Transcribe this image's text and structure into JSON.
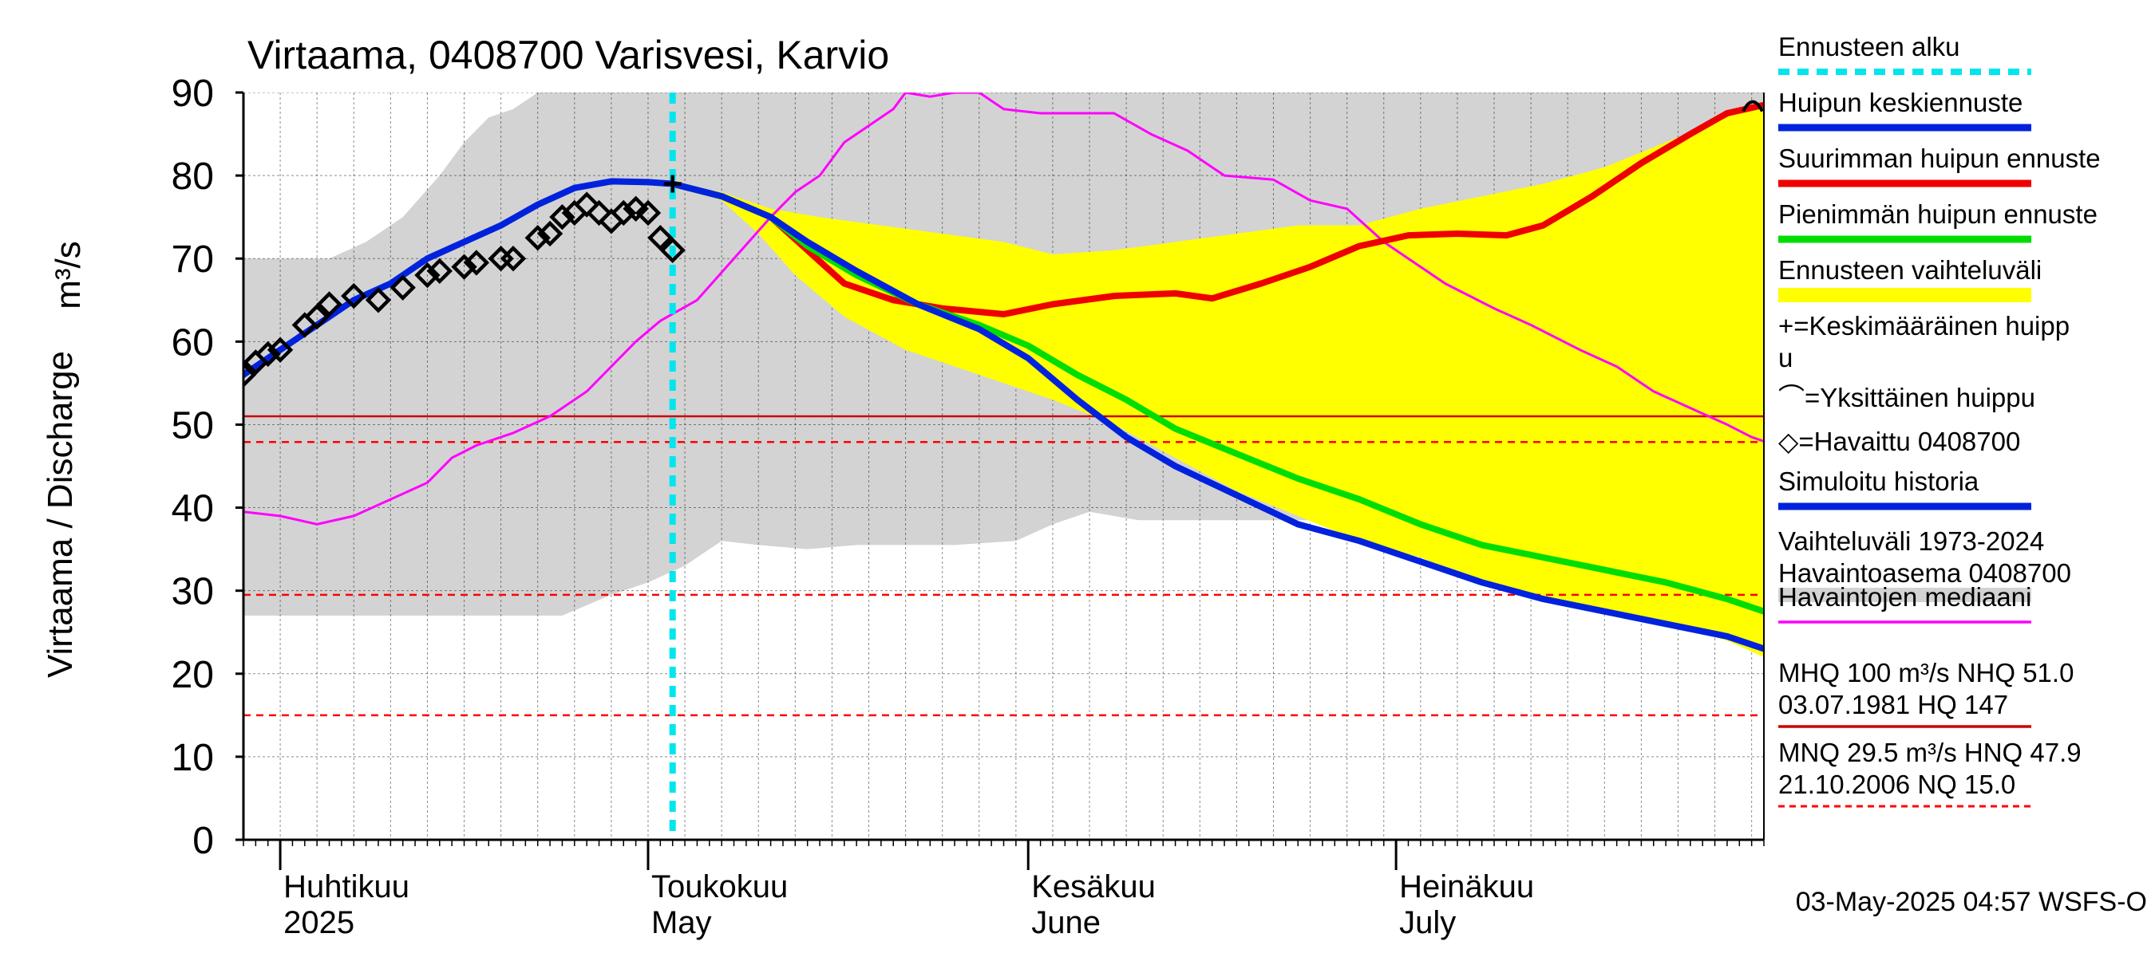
{
  "chart_data": {
    "type": "line",
    "title": "Virtaama, 0408700 Varisvesi, Karvio",
    "ylabel": "Virtaama / Discharge",
    "yunit": "m³/s",
    "ylim": [
      0,
      90
    ],
    "yticks": [
      0,
      10,
      20,
      30,
      40,
      50,
      60,
      70,
      80,
      90
    ],
    "xlim": [
      "2025-03-29",
      "2025-07-31"
    ],
    "x_is_date": true,
    "month_labels": [
      {
        "date": "2025-04-01",
        "line1": "Huhtikuu",
        "line2": "2025"
      },
      {
        "date": "2025-05-01",
        "line1": "Toukokuu",
        "line2": "May"
      },
      {
        "date": "2025-06-01",
        "line1": "Kesäkuu",
        "line2": "June"
      },
      {
        "date": "2025-07-01",
        "line1": "Heinäkuu",
        "line2": "July"
      }
    ],
    "forecast_start": "2025-05-03",
    "timestamp": "03-May-2025 04:57 WSFS-O",
    "grid": true,
    "legend_position": "right",
    "history_band": {
      "name": "Vaihteluväli 1973-2024 Havaintoasema 0408700",
      "color": "#d3d3d3",
      "upper": [
        [
          "2025-03-29",
          70
        ],
        [
          "2025-04-05",
          70
        ],
        [
          "2025-04-08",
          72
        ],
        [
          "2025-04-11",
          75
        ],
        [
          "2025-04-14",
          80
        ],
        [
          "2025-04-16",
          84
        ],
        [
          "2025-04-18",
          87
        ],
        [
          "2025-04-20",
          88
        ],
        [
          "2025-04-22",
          90
        ],
        [
          "2025-05-03",
          90
        ],
        [
          "2025-06-01",
          90
        ],
        [
          "2025-07-31",
          90
        ]
      ],
      "lower": [
        [
          "2025-03-29",
          27
        ],
        [
          "2025-04-20",
          27
        ],
        [
          "2025-04-24",
          27
        ],
        [
          "2025-04-28",
          29.5
        ],
        [
          "2025-05-01",
          31
        ],
        [
          "2025-05-04",
          33
        ],
        [
          "2025-05-07",
          36
        ],
        [
          "2025-05-10",
          35.5
        ],
        [
          "2025-05-14",
          35
        ],
        [
          "2025-05-18",
          35.5
        ],
        [
          "2025-05-22",
          35.5
        ],
        [
          "2025-05-26",
          35.5
        ],
        [
          "2025-05-31",
          36
        ],
        [
          "2025-06-03",
          38
        ],
        [
          "2025-06-06",
          39.5
        ],
        [
          "2025-06-10",
          38.5
        ],
        [
          "2025-06-18",
          38.5
        ],
        [
          "2025-06-25",
          38.5
        ],
        [
          "2025-07-02",
          38.5
        ],
        [
          "2025-07-08",
          36
        ],
        [
          "2025-07-12",
          38.5
        ],
        [
          "2025-07-16",
          38
        ],
        [
          "2025-07-20",
          38.5
        ],
        [
          "2025-07-24",
          37
        ],
        [
          "2025-07-28",
          35
        ],
        [
          "2025-07-31",
          30
        ]
      ]
    },
    "forecast_band": {
      "name": "Ennusteen vaihteluväli",
      "color": "#ffff00",
      "upper": [
        [
          "2025-05-03",
          79
        ],
        [
          "2025-05-07",
          78
        ],
        [
          "2025-05-11",
          76
        ],
        [
          "2025-05-15",
          75
        ],
        [
          "2025-05-20",
          74
        ],
        [
          "2025-05-25",
          73
        ],
        [
          "2025-05-30",
          72
        ],
        [
          "2025-06-03",
          70.5
        ],
        [
          "2025-06-08",
          71
        ],
        [
          "2025-06-13",
          72
        ],
        [
          "2025-06-18",
          73
        ],
        [
          "2025-06-23",
          74
        ],
        [
          "2025-06-28",
          74
        ],
        [
          "2025-07-03",
          76
        ],
        [
          "2025-07-08",
          77.5
        ],
        [
          "2025-07-13",
          79
        ],
        [
          "2025-07-18",
          81
        ],
        [
          "2025-07-23",
          84
        ],
        [
          "2025-07-28",
          87
        ],
        [
          "2025-07-31",
          89
        ]
      ],
      "lower": [
        [
          "2025-05-03",
          79
        ],
        [
          "2025-05-07",
          77
        ],
        [
          "2025-05-10",
          73
        ],
        [
          "2025-05-13",
          68
        ],
        [
          "2025-05-17",
          63
        ],
        [
          "2025-05-22",
          59
        ],
        [
          "2025-05-28",
          56
        ],
        [
          "2025-06-03",
          53
        ],
        [
          "2025-06-08",
          50
        ],
        [
          "2025-06-13",
          46
        ],
        [
          "2025-06-18",
          42
        ],
        [
          "2025-06-23",
          39
        ],
        [
          "2025-06-28",
          36
        ],
        [
          "2025-07-03",
          34
        ],
        [
          "2025-07-08",
          31
        ],
        [
          "2025-07-13",
          29
        ],
        [
          "2025-07-18",
          27.5
        ],
        [
          "2025-07-23",
          26
        ],
        [
          "2025-07-28",
          24
        ],
        [
          "2025-07-31",
          22
        ]
      ]
    },
    "series": [
      {
        "name": "Havaintojen mediaani",
        "color": "#ff00ff",
        "width": 3,
        "points": [
          [
            "2025-03-29",
            39.5
          ],
          [
            "2025-04-01",
            39
          ],
          [
            "2025-04-04",
            38
          ],
          [
            "2025-04-07",
            39
          ],
          [
            "2025-04-10",
            41
          ],
          [
            "2025-04-13",
            43
          ],
          [
            "2025-04-15",
            46
          ],
          [
            "2025-04-17",
            47.5
          ],
          [
            "2025-04-20",
            49
          ],
          [
            "2025-04-23",
            51
          ],
          [
            "2025-04-26",
            54
          ],
          [
            "2025-04-28",
            57
          ],
          [
            "2025-04-30",
            60
          ],
          [
            "2025-05-02",
            62.5
          ],
          [
            "2025-05-05",
            65
          ],
          [
            "2025-05-08",
            70
          ],
          [
            "2025-05-11",
            75
          ],
          [
            "2025-05-13",
            78
          ],
          [
            "2025-05-15",
            80
          ],
          [
            "2025-05-17",
            84
          ],
          [
            "2025-05-19",
            86
          ],
          [
            "2025-05-21",
            88
          ],
          [
            "2025-05-22",
            90
          ],
          [
            "2025-05-24",
            89.5
          ],
          [
            "2025-05-26",
            90
          ],
          [
            "2025-05-28",
            90
          ],
          [
            "2025-05-30",
            88
          ],
          [
            "2025-06-02",
            87.5
          ],
          [
            "2025-06-05",
            87.5
          ],
          [
            "2025-06-08",
            87.5
          ],
          [
            "2025-06-11",
            85
          ],
          [
            "2025-06-14",
            83
          ],
          [
            "2025-06-17",
            80
          ],
          [
            "2025-06-21",
            79.5
          ],
          [
            "2025-06-24",
            77
          ],
          [
            "2025-06-27",
            76
          ],
          [
            "2025-06-30",
            72
          ],
          [
            "2025-07-02",
            70
          ],
          [
            "2025-07-05",
            67
          ],
          [
            "2025-07-09",
            64
          ],
          [
            "2025-07-12",
            62
          ],
          [
            "2025-07-16",
            59
          ],
          [
            "2025-07-19",
            57
          ],
          [
            "2025-07-22",
            54
          ],
          [
            "2025-07-25",
            52
          ],
          [
            "2025-07-28",
            50
          ],
          [
            "2025-07-30",
            48.5
          ],
          [
            "2025-07-31",
            48
          ]
        ]
      },
      {
        "name": "Simuloitu historia",
        "color": "#0022dd",
        "width": 8,
        "points": [
          [
            "2025-03-29",
            56
          ],
          [
            "2025-04-01",
            59
          ],
          [
            "2025-04-04",
            62
          ],
          [
            "2025-04-07",
            65
          ],
          [
            "2025-04-10",
            67
          ],
          [
            "2025-04-13",
            70
          ],
          [
            "2025-04-16",
            72
          ],
          [
            "2025-04-19",
            74
          ],
          [
            "2025-04-22",
            76.5
          ],
          [
            "2025-04-25",
            78.5
          ],
          [
            "2025-04-28",
            79.3
          ],
          [
            "2025-05-01",
            79.2
          ],
          [
            "2025-05-03",
            79
          ]
        ]
      },
      {
        "name": "Suurimman huipun ennuste",
        "color": "#ee0000",
        "width": 8,
        "points": [
          [
            "2025-05-03",
            79
          ],
          [
            "2025-05-07",
            77.5
          ],
          [
            "2025-05-11",
            75
          ],
          [
            "2025-05-14",
            71
          ],
          [
            "2025-05-17",
            67
          ],
          [
            "2025-05-21",
            65
          ],
          [
            "2025-05-25",
            64
          ],
          [
            "2025-05-30",
            63.3
          ],
          [
            "2025-06-03",
            64.5
          ],
          [
            "2025-06-08",
            65.5
          ],
          [
            "2025-06-13",
            65.8
          ],
          [
            "2025-06-16",
            65.2
          ],
          [
            "2025-06-20",
            67
          ],
          [
            "2025-06-24",
            69
          ],
          [
            "2025-06-28",
            71.5
          ],
          [
            "2025-07-02",
            72.8
          ],
          [
            "2025-07-06",
            73
          ],
          [
            "2025-07-10",
            72.8
          ],
          [
            "2025-07-13",
            74
          ],
          [
            "2025-07-17",
            77.5
          ],
          [
            "2025-07-21",
            81.5
          ],
          [
            "2025-07-25",
            85
          ],
          [
            "2025-07-28",
            87.5
          ],
          [
            "2025-07-31",
            88.5
          ]
        ]
      },
      {
        "name": "Pienimmän huipun ennuste",
        "color": "#00dd00",
        "width": 8,
        "points": [
          [
            "2025-05-03",
            79
          ],
          [
            "2025-05-07",
            77.5
          ],
          [
            "2025-05-11",
            75
          ],
          [
            "2025-05-14",
            71.5
          ],
          [
            "2025-05-18",
            68
          ],
          [
            "2025-05-23",
            64.5
          ],
          [
            "2025-05-28",
            62
          ],
          [
            "2025-06-01",
            59.5
          ],
          [
            "2025-06-05",
            56
          ],
          [
            "2025-06-09",
            53
          ],
          [
            "2025-06-13",
            49.5
          ],
          [
            "2025-06-18",
            46.5
          ],
          [
            "2025-06-23",
            43.5
          ],
          [
            "2025-06-28",
            41
          ],
          [
            "2025-07-03",
            38
          ],
          [
            "2025-07-08",
            35.5
          ],
          [
            "2025-07-13",
            34
          ],
          [
            "2025-07-18",
            32.5
          ],
          [
            "2025-07-23",
            31
          ],
          [
            "2025-07-28",
            29
          ],
          [
            "2025-07-31",
            27.5
          ]
        ]
      },
      {
        "name": "Huipun keskiennuste",
        "color": "#0022dd",
        "width": 8,
        "points": [
          [
            "2025-05-03",
            79
          ],
          [
            "2025-05-07",
            77.5
          ],
          [
            "2025-05-11",
            75
          ],
          [
            "2025-05-14",
            72
          ],
          [
            "2025-05-18",
            68.5
          ],
          [
            "2025-05-23",
            64.5
          ],
          [
            "2025-05-28",
            61.5
          ],
          [
            "2025-06-01",
            58
          ],
          [
            "2025-06-05",
            53
          ],
          [
            "2025-06-09",
            48.5
          ],
          [
            "2025-06-13",
            45
          ],
          [
            "2025-06-18",
            41.5
          ],
          [
            "2025-06-23",
            38
          ],
          [
            "2025-06-28",
            36
          ],
          [
            "2025-07-03",
            33.5
          ],
          [
            "2025-07-08",
            31
          ],
          [
            "2025-07-13",
            29
          ],
          [
            "2025-07-18",
            27.5
          ],
          [
            "2025-07-23",
            26
          ],
          [
            "2025-07-28",
            24.5
          ],
          [
            "2025-07-31",
            23
          ]
        ]
      }
    ],
    "observed": {
      "name": "Havaittu 0408700",
      "marker": "diamond",
      "points": [
        [
          "2025-03-29",
          56
        ],
        [
          "2025-03-30",
          57.5
        ],
        [
          "2025-03-31",
          58.5
        ],
        [
          "2025-04-01",
          59
        ],
        [
          "2025-04-03",
          62
        ],
        [
          "2025-04-04",
          63
        ],
        [
          "2025-04-05",
          64.5
        ],
        [
          "2025-04-07",
          65.5
        ],
        [
          "2025-04-09",
          65
        ],
        [
          "2025-04-11",
          66.5
        ],
        [
          "2025-04-13",
          68
        ],
        [
          "2025-04-14",
          68.5
        ],
        [
          "2025-04-16",
          69
        ],
        [
          "2025-04-17",
          69.5
        ],
        [
          "2025-04-19",
          70
        ],
        [
          "2025-04-20",
          70
        ],
        [
          "2025-04-22",
          72.5
        ],
        [
          "2025-04-23",
          73
        ],
        [
          "2025-04-24",
          75
        ],
        [
          "2025-04-25",
          75.5
        ],
        [
          "2025-04-26",
          76.5
        ],
        [
          "2025-04-27",
          75.5
        ],
        [
          "2025-04-28",
          74.5
        ],
        [
          "2025-04-29",
          75.5
        ],
        [
          "2025-04-30",
          76
        ],
        [
          "2025-05-01",
          75.5
        ],
        [
          "2025-05-02",
          72.5
        ],
        [
          "2025-05-03",
          71
        ]
      ]
    },
    "mean_peak_marker": {
      "name": "Keskimääräinen huippu",
      "date": "2025-05-03",
      "value": 79
    },
    "single_peak_marker": {
      "name": "Yksittäinen huippu",
      "date": "2025-07-31",
      "value": 88.5
    },
    "reference_lines": [
      {
        "value": 51.0,
        "style": "solid",
        "color": "#cc0000",
        "label": "NHQ"
      },
      {
        "value": 47.9,
        "style": "dashed",
        "color": "#ff0000",
        "label": "HNQ"
      },
      {
        "value": 29.5,
        "style": "dashed",
        "color": "#ff0000",
        "label": "MNQ"
      },
      {
        "value": 15.0,
        "style": "dashed",
        "color": "#ff0000",
        "label": "NQ"
      }
    ],
    "legend": [
      {
        "label": "Ennusteen alku",
        "kind": "dashline",
        "color": "#00e5ee"
      },
      {
        "label": "Huipun keskiennuste",
        "kind": "line",
        "color": "#0022dd"
      },
      {
        "label": "Suurimman huipun ennuste",
        "kind": "line",
        "color": "#ee0000"
      },
      {
        "label": "Pienimmän huipun ennuste",
        "kind": "line",
        "color": "#00dd00"
      },
      {
        "label": "Ennusteen vaihteluväli",
        "kind": "band",
        "color": "#ffff00"
      },
      {
        "label": "+=Keskimääräinen huipp",
        "label2": "u",
        "kind": "text"
      },
      {
        "label": "⌒=Yksittäinen huippu",
        "kind": "text"
      },
      {
        "label": "◇=Havaittu 0408700",
        "kind": "text"
      },
      {
        "label": "Simuloitu historia",
        "kind": "line",
        "color": "#0022dd"
      },
      {
        "label": "Vaihteluväli 1973-2024",
        "label2": " Havaintoasema 0408700",
        "kind": "band",
        "color": "#d3d3d3"
      },
      {
        "label": "Havaintojen mediaani",
        "kind": "thinline",
        "color": "#ff00ff"
      },
      {
        "label": "MHQ  100 m³/s NHQ 51.0",
        "label2": "03.07.1981 HQ  147",
        "kind": "thinline",
        "color": "#cc0000"
      },
      {
        "label": "MNQ 29.5 m³/s HNQ 47.9",
        "label2": "21.10.2006 NQ 15.0",
        "kind": "dashthin",
        "color": "#ff0000"
      }
    ]
  }
}
